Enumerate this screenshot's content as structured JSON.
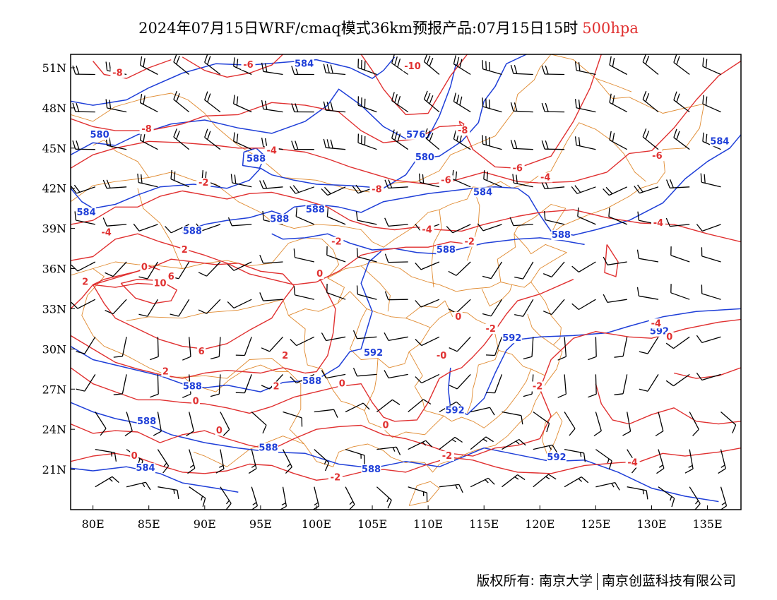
{
  "title": {
    "main": "2024年07月15日WRF/cmaq模式36km预报产品:07月15日15时",
    "level": "500hpa"
  },
  "footer": {
    "left": "版权所有: 南京大学",
    "right": "南京创蓝科技有限公司"
  },
  "colors": {
    "temperature": "#e03030",
    "height": "#1f3fd8",
    "boundary": "#e08a30",
    "wind": "#000000"
  },
  "axes": {
    "lon_range": [
      78,
      138
    ],
    "lat_range": [
      18,
      52
    ],
    "lon_ticks": [
      {
        "value": 80,
        "label": "80E"
      },
      {
        "value": 85,
        "label": "85E"
      },
      {
        "value": 90,
        "label": "90E"
      },
      {
        "value": 95,
        "label": "95E"
      },
      {
        "value": 100,
        "label": "100E"
      },
      {
        "value": 105,
        "label": "105E"
      },
      {
        "value": 110,
        "label": "110E"
      },
      {
        "value": 115,
        "label": "115E"
      },
      {
        "value": 120,
        "label": "120E"
      },
      {
        "value": 125,
        "label": "125E"
      },
      {
        "value": 130,
        "label": "130E"
      },
      {
        "value": 135,
        "label": "135E"
      }
    ],
    "lat_ticks": [
      {
        "value": 51,
        "label": "51N"
      },
      {
        "value": 48,
        "label": "48N"
      },
      {
        "value": 45,
        "label": "45N"
      },
      {
        "value": 42,
        "label": "42N"
      },
      {
        "value": 39,
        "label": "39N"
      },
      {
        "value": 36,
        "label": "36N"
      },
      {
        "value": 33,
        "label": "33N"
      },
      {
        "value": 30,
        "label": "30N"
      },
      {
        "value": 27,
        "label": "27N"
      },
      {
        "value": 24,
        "label": "24N"
      },
      {
        "value": 21,
        "label": "21N"
      }
    ]
  },
  "temperature_labels": [
    {
      "text": "-8",
      "lon": 82.2,
      "lat": 50.6
    },
    {
      "value_note": "",
      "text": "-6",
      "lon": 93.9,
      "lat": 51.2
    },
    {
      "text": "-10",
      "lon": 108.6,
      "lat": 51.1
    },
    {
      "text": "-8",
      "lon": 84.8,
      "lat": 46.4
    },
    {
      "text": "-8",
      "lon": 113.1,
      "lat": 46.3
    },
    {
      "text": "-4",
      "lon": 96.0,
      "lat": 44.8
    },
    {
      "text": "-6",
      "lon": 118.0,
      "lat": 43.5
    },
    {
      "text": "-4",
      "lon": 120.5,
      "lat": 42.8
    },
    {
      "text": "-6",
      "lon": 130.5,
      "lat": 44.4
    },
    {
      "text": "-6",
      "lon": 111.6,
      "lat": 42.6
    },
    {
      "text": "-8",
      "lon": 105.4,
      "lat": 41.9
    },
    {
      "text": "-2",
      "lon": 89.9,
      "lat": 42.4
    },
    {
      "text": "-4",
      "lon": 81.2,
      "lat": 38.7
    },
    {
      "text": "-4",
      "lon": 109.9,
      "lat": 38.9
    },
    {
      "text": "-4",
      "lon": 130.6,
      "lat": 39.4
    },
    {
      "text": "-2",
      "lon": 101.8,
      "lat": 38.0
    },
    {
      "text": "-2",
      "lon": 113.7,
      "lat": 38.0
    },
    {
      "text": "2",
      "lon": 88.2,
      "lat": 37.4
    },
    {
      "text": "0",
      "lon": 84.6,
      "lat": 36.1
    },
    {
      "text": "0",
      "lon": 100.3,
      "lat": 35.6
    },
    {
      "text": "2",
      "lon": 79.3,
      "lat": 35.0
    },
    {
      "text": "10",
      "lon": 86.0,
      "lat": 34.9
    },
    {
      "text": "6",
      "lon": 87.0,
      "lat": 35.4
    },
    {
      "text": "0",
      "lon": 112.7,
      "lat": 32.4
    },
    {
      "text": "-2",
      "lon": 115.6,
      "lat": 31.5
    },
    {
      "text": "-4",
      "lon": 130.4,
      "lat": 31.9
    },
    {
      "text": "0",
      "lon": 131.6,
      "lat": 30.9
    },
    {
      "text": "6",
      "lon": 89.7,
      "lat": 29.8
    },
    {
      "text": "2",
      "lon": 97.2,
      "lat": 29.5
    },
    {
      "text": "-0",
      "lon": 111.2,
      "lat": 29.5
    },
    {
      "text": "2",
      "lon": 86.5,
      "lat": 28.3
    },
    {
      "text": "0",
      "lon": 102.3,
      "lat": 27.4
    },
    {
      "text": "2",
      "lon": 96.4,
      "lat": 27.2
    },
    {
      "text": "0",
      "lon": 89.2,
      "lat": 26.1
    },
    {
      "text": "-2",
      "lon": 119.8,
      "lat": 27.2
    },
    {
      "text": "0",
      "lon": 91.3,
      "lat": 23.9
    },
    {
      "text": "0",
      "lon": 106.2,
      "lat": 24.3
    },
    {
      "text": "0",
      "lon": 83.7,
      "lat": 22.0
    },
    {
      "text": "-2",
      "lon": 101.7,
      "lat": 20.4
    },
    {
      "text": "-2",
      "lon": 111.7,
      "lat": 22.0
    },
    {
      "text": "-4",
      "lon": 128.3,
      "lat": 21.5
    }
  ],
  "height_labels": [
    {
      "text": "584",
      "lon": 98.9,
      "lat": 51.3
    },
    {
      "text": "576",
      "lon": 108.9,
      "lat": 46.0
    },
    {
      "text": "580",
      "lon": 80.6,
      "lat": 46.0
    },
    {
      "text": "584",
      "lon": 136.1,
      "lat": 45.5
    },
    {
      "text": "580",
      "lon": 109.7,
      "lat": 44.3
    },
    {
      "text": "588",
      "lon": 94.6,
      "lat": 44.2
    },
    {
      "text": "584",
      "lon": 114.9,
      "lat": 41.7
    },
    {
      "text": "584",
      "lon": 79.4,
      "lat": 40.2
    },
    {
      "text": "588",
      "lon": 99.9,
      "lat": 40.4
    },
    {
      "text": "588",
      "lon": 96.7,
      "lat": 39.7
    },
    {
      "text": "588",
      "lon": 88.9,
      "lat": 38.8
    },
    {
      "text": "588",
      "lon": 121.9,
      "lat": 38.5
    },
    {
      "text": "588",
      "lon": 111.6,
      "lat": 37.4
    },
    {
      "text": "592",
      "lon": 130.7,
      "lat": 31.3
    },
    {
      "text": "592",
      "lon": 117.5,
      "lat": 30.8
    },
    {
      "text": "592",
      "lon": 105.1,
      "lat": 29.7
    },
    {
      "text": "588",
      "lon": 99.6,
      "lat": 27.6
    },
    {
      "text": "588",
      "lon": 88.9,
      "lat": 27.2
    },
    {
      "text": "592",
      "lon": 112.4,
      "lat": 25.4
    },
    {
      "text": "588",
      "lon": 84.8,
      "lat": 24.6
    },
    {
      "text": "588",
      "lon": 95.7,
      "lat": 22.6
    },
    {
      "text": "592",
      "lon": 121.5,
      "lat": 21.9
    },
    {
      "text": "584",
      "lon": 84.7,
      "lat": 21.1
    },
    {
      "text": "588",
      "lon": 104.9,
      "lat": 21.0
    }
  ]
}
